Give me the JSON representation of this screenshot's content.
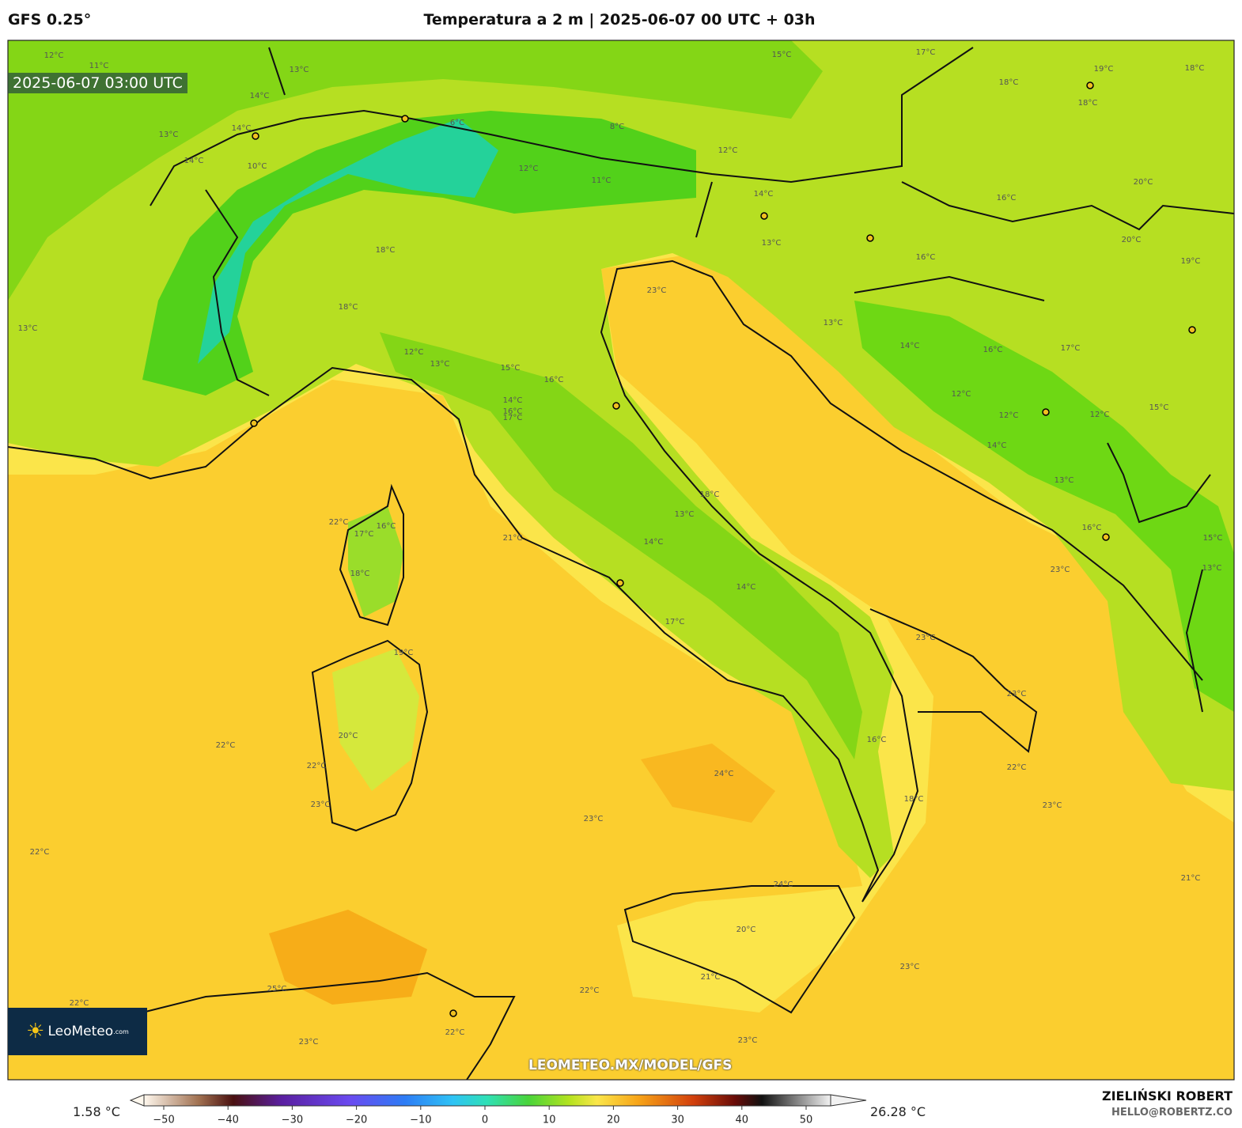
{
  "header": {
    "model": "GFS 0.25°",
    "title": "Temperatura a 2 m | 2025-06-07 00 UTC + 03h"
  },
  "timestamp": "2025-06-07 03:00 UTC",
  "contour_labels": [
    "23°C",
    "18°C",
    "18°C",
    "12°C",
    "13°C",
    "15°C",
    "16°C",
    "14°C",
    "16°C",
    "17°C",
    "18°C",
    "13°C",
    "14°C",
    "14°C",
    "17°C",
    "21°C",
    "22°C",
    "16°C",
    "17°C",
    "18°C",
    "19°C",
    "20°C",
    "22°C",
    "22°C",
    "23°C",
    "22°C",
    "23°C",
    "24°C",
    "24°C",
    "20°C",
    "21°C",
    "22°C",
    "25°C",
    "22°C",
    "23°C",
    "22°C",
    "23°C",
    "23°C",
    "23°C",
    "22°C",
    "23°C",
    "23°C",
    "23°C",
    "16°C",
    "13°C",
    "12°C",
    "12°C",
    "12°C",
    "14°C",
    "14°C",
    "16°C",
    "17°C",
    "13°C",
    "13°C",
    "14°C",
    "16°C",
    "16°C",
    "20°C",
    "20°C",
    "19°C",
    "18°C",
    "17°C",
    "15°C",
    "19°C",
    "18°C",
    "18°C",
    "12°C",
    "11°C",
    "12°C",
    "8°C",
    "6°C",
    "13°C",
    "14°C",
    "14°C",
    "12°C",
    "11°C",
    "13°C",
    "14°C",
    "10°C",
    "13°C",
    "15°C",
    "15°C",
    "13°C",
    "21°C",
    "18°C",
    "16°C"
  ],
  "logo": {
    "name": "LeoMeteo",
    "suffix": ".com"
  },
  "watermark": "LEOMETEO.MX/MODEL/GFS",
  "colorbar": {
    "min_label": "1.58 °C",
    "max_label": "26.28 °C",
    "ticks": [
      {
        "value": -50,
        "label": "−50"
      },
      {
        "value": -40,
        "label": "−40"
      },
      {
        "value": -30,
        "label": "−30"
      },
      {
        "value": -20,
        "label": "−20"
      },
      {
        "value": -10,
        "label": "−10"
      },
      0,
      10,
      20,
      30,
      40,
      50
    ]
  },
  "author": {
    "name": "ZIELIŃSKI ROBERT",
    "contact": "HELLO@ROBERTZ.CO"
  }
}
